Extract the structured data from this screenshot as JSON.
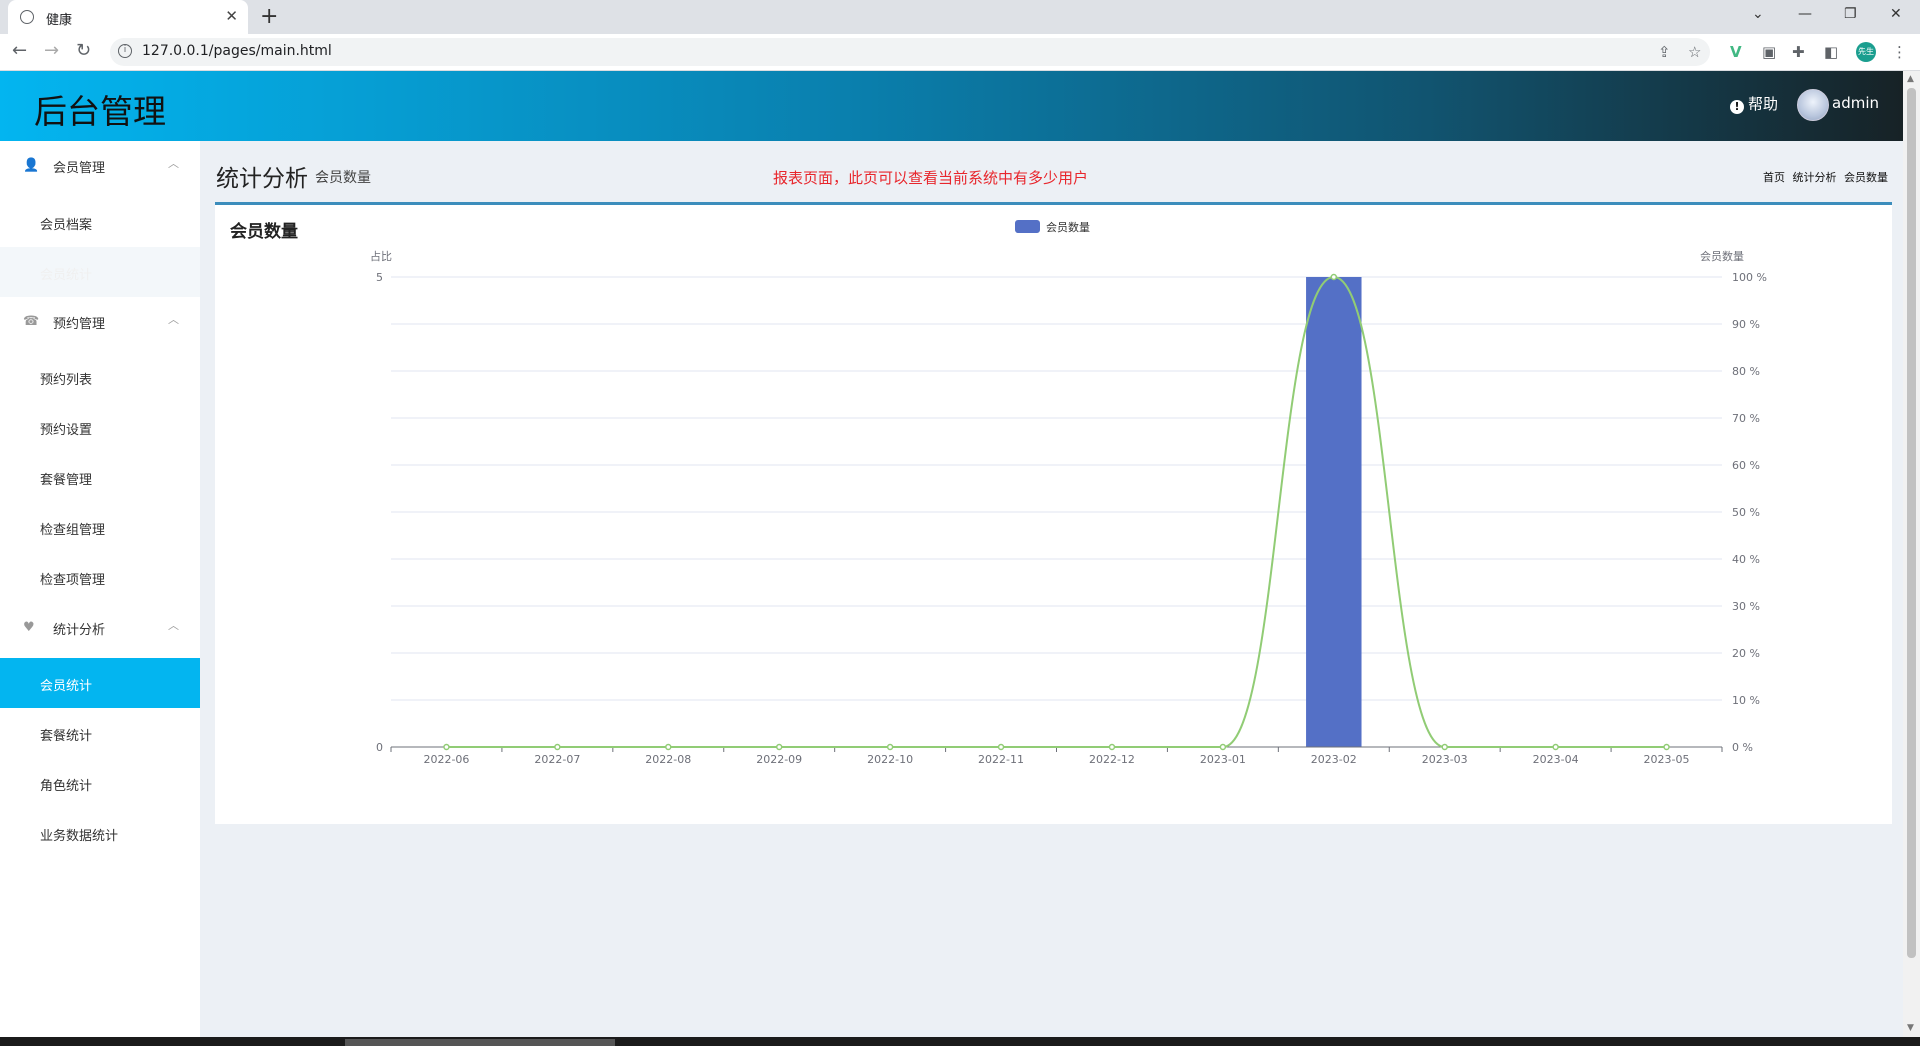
{
  "browser": {
    "tab_title": "健康",
    "url": "127.0.0.1/pages/main.html",
    "profile_label": "先生"
  },
  "header": {
    "brand": "后台管理",
    "help_label": "帮助",
    "username": "admin"
  },
  "sidebar": {
    "groups": [
      {
        "label": "会员管理",
        "icon": "user-icon",
        "items": [
          {
            "label": "会员档案"
          },
          {
            "label": "会员统计",
            "state": "faint"
          }
        ]
      },
      {
        "label": "预约管理",
        "icon": "phone-icon",
        "items": [
          {
            "label": "预约列表"
          },
          {
            "label": "预约设置"
          },
          {
            "label": "套餐管理"
          },
          {
            "label": "检查组管理"
          },
          {
            "label": "检查项管理"
          }
        ]
      },
      {
        "label": "统计分析",
        "icon": "heartbeat-icon",
        "items": [
          {
            "label": "会员统计",
            "state": "active"
          },
          {
            "label": "套餐统计"
          },
          {
            "label": "角色统计"
          },
          {
            "label": "业务数据统计"
          }
        ]
      }
    ]
  },
  "page": {
    "title": "统计分析",
    "subtitle": "会员数量",
    "notice": "报表页面，此页可以查看当前系统中有多少用户",
    "breadcrumb": [
      "首页",
      "统计分析",
      "会员数量"
    ],
    "box_title": "会员数量"
  },
  "colors": {
    "bar": "#5470c6",
    "line": "#91cc75",
    "axis_text": "#6e7079",
    "active": "#03b5f0"
  },
  "chart_data": {
    "type": "bar",
    "legend": [
      "会员数量"
    ],
    "categories": [
      "2022-06",
      "2022-07",
      "2022-08",
      "2022-09",
      "2022-10",
      "2022-11",
      "2022-12",
      "2023-01",
      "2023-02",
      "2023-03",
      "2023-04",
      "2023-05"
    ],
    "y_left": {
      "name": "占比",
      "min": 0,
      "max": 5,
      "ticks": [
        "0",
        "5"
      ]
    },
    "y_right": {
      "name": "会员数量",
      "min": 0,
      "max": 100,
      "ticks": [
        "0 %",
        "10 %",
        "20 %",
        "30 %",
        "40 %",
        "50 %",
        "60 %",
        "70 %",
        "80 %",
        "90 %",
        "100 %"
      ]
    },
    "series": [
      {
        "name": "会员数量",
        "type": "bar",
        "axis": "left",
        "values": [
          0,
          0,
          0,
          0,
          0,
          0,
          0,
          0,
          5,
          0,
          0,
          0
        ]
      },
      {
        "type": "line",
        "smooth": true,
        "axis": "right",
        "values": [
          0,
          0,
          0,
          0,
          0,
          0,
          0,
          0,
          100,
          0,
          0,
          0
        ]
      }
    ],
    "grid": true
  }
}
